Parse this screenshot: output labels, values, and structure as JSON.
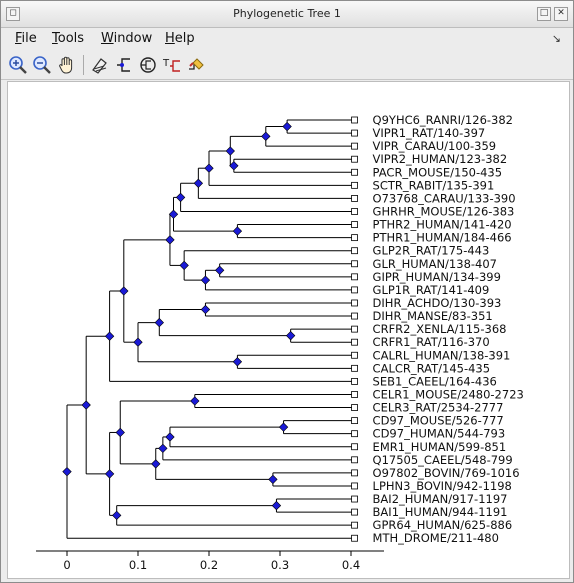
{
  "window": {
    "title": "Phylogenetic Tree 1"
  },
  "menu": {
    "items": [
      {
        "label": "File",
        "name": "menu-file"
      },
      {
        "label": "Tools",
        "name": "menu-tools"
      },
      {
        "label": "Window",
        "name": "menu-window"
      },
      {
        "label": "Help",
        "name": "menu-help"
      }
    ]
  },
  "toolbar": {
    "tools": [
      {
        "name": "zoom-in-icon"
      },
      {
        "name": "zoom-out-icon"
      },
      {
        "name": "pan-hand-icon"
      },
      {
        "name": "tool-4-icon"
      },
      {
        "name": "tool-5-icon"
      },
      {
        "name": "tool-6-icon"
      },
      {
        "name": "tool-7-icon"
      },
      {
        "name": "tool-8-icon"
      }
    ]
  },
  "tree": {
    "leaves": [
      {
        "label": "Q9YHC6_RANRI/126-382",
        "x": 0.405
      },
      {
        "label": "VIPR1_RAT/140-397",
        "x": 0.405
      },
      {
        "label": "VIPR_CARAU/100-359",
        "x": 0.405
      },
      {
        "label": "VIPR2_HUMAN/123-382",
        "x": 0.405
      },
      {
        "label": "PACR_MOUSE/150-435",
        "x": 0.405
      },
      {
        "label": "SCTR_RABIT/135-391",
        "x": 0.405
      },
      {
        "label": "O73768_CARAU/133-390",
        "x": 0.405
      },
      {
        "label": "GHRHR_MOUSE/126-383",
        "x": 0.405
      },
      {
        "label": "PTHR2_HUMAN/141-420",
        "x": 0.405
      },
      {
        "label": "PTHR1_HUMAN/184-466",
        "x": 0.405
      },
      {
        "label": "GLP2R_RAT/175-443",
        "x": 0.405
      },
      {
        "label": "GLR_HUMAN/138-407",
        "x": 0.405
      },
      {
        "label": "GIPR_HUMAN/134-399",
        "x": 0.405
      },
      {
        "label": "GLP1R_RAT/141-409",
        "x": 0.405
      },
      {
        "label": "DIHR_ACHDO/130-393",
        "x": 0.405
      },
      {
        "label": "DIHR_MANSE/83-351",
        "x": 0.405
      },
      {
        "label": "CRFR2_XENLA/115-368",
        "x": 0.405
      },
      {
        "label": "CRFR1_RAT/116-370",
        "x": 0.405
      },
      {
        "label": "CALRL_HUMAN/138-391",
        "x": 0.405
      },
      {
        "label": "CALCR_RAT/145-435",
        "x": 0.405
      },
      {
        "label": "SEB1_CAEEL/164-436",
        "x": 0.405
      },
      {
        "label": "CELR1_MOUSE/2480-2723",
        "x": 0.405
      },
      {
        "label": "CELR3_RAT/2534-2777",
        "x": 0.405
      },
      {
        "label": "CD97_MOUSE/526-777",
        "x": 0.405
      },
      {
        "label": "CD97_HUMAN/544-793",
        "x": 0.405
      },
      {
        "label": "EMR1_HUMAN/599-851",
        "x": 0.405
      },
      {
        "label": "Q17505_CAEEL/548-799",
        "x": 0.405
      },
      {
        "label": "O97802_BOVIN/769-1016",
        "x": 0.405
      },
      {
        "label": "LPHN3_BOVIN/942-1198",
        "x": 0.405
      },
      {
        "label": "BAI2_HUMAN/917-1197",
        "x": 0.405
      },
      {
        "label": "BAI1_HUMAN/944-1191",
        "x": 0.405
      },
      {
        "label": "GPR64_HUMAN/625-886",
        "x": 0.405
      },
      {
        "label": "MTH_DROME/211-480",
        "x": 0.405
      }
    ],
    "nodes": [
      {
        "id": "n0",
        "x": 0.31,
        "children": [
          0,
          1
        ]
      },
      {
        "id": "n1",
        "x": 0.28,
        "children": [
          "n0",
          2
        ]
      },
      {
        "id": "n2",
        "x": 0.235,
        "children": [
          3,
          4
        ]
      },
      {
        "id": "n3",
        "x": 0.23,
        "children": [
          "n1",
          "n2"
        ]
      },
      {
        "id": "n4",
        "x": 0.2,
        "children": [
          "n3",
          5
        ]
      },
      {
        "id": "n5",
        "x": 0.185,
        "children": [
          "n4",
          6
        ]
      },
      {
        "id": "n6",
        "x": 0.16,
        "children": [
          "n5",
          7
        ]
      },
      {
        "id": "n7",
        "x": 0.24,
        "children": [
          8,
          9
        ]
      },
      {
        "id": "n8",
        "x": 0.15,
        "children": [
          "n6",
          "n7"
        ]
      },
      {
        "id": "n9",
        "x": 0.215,
        "children": [
          11,
          12
        ]
      },
      {
        "id": "n10",
        "x": 0.195,
        "children": [
          "n9",
          13
        ]
      },
      {
        "id": "n11",
        "x": 0.165,
        "children": [
          10,
          "n10"
        ]
      },
      {
        "id": "n12",
        "x": 0.145,
        "children": [
          "n8",
          "n11"
        ]
      },
      {
        "id": "n13",
        "x": 0.195,
        "children": [
          14,
          15
        ]
      },
      {
        "id": "n14",
        "x": 0.315,
        "children": [
          16,
          17
        ]
      },
      {
        "id": "n15",
        "x": 0.13,
        "children": [
          "n13",
          "n14"
        ]
      },
      {
        "id": "n16",
        "x": 0.24,
        "children": [
          18,
          19
        ]
      },
      {
        "id": "n17",
        "x": 0.1,
        "children": [
          "n15",
          "n16"
        ]
      },
      {
        "id": "n18",
        "x": 0.08,
        "children": [
          "n12",
          "n17"
        ]
      },
      {
        "id": "n19",
        "x": 0.06,
        "children": [
          "n18",
          20
        ]
      },
      {
        "id": "n20",
        "x": 0.18,
        "children": [
          21,
          22
        ]
      },
      {
        "id": "n21",
        "x": 0.305,
        "children": [
          23,
          24
        ]
      },
      {
        "id": "n22",
        "x": 0.145,
        "children": [
          "n21",
          25
        ]
      },
      {
        "id": "n23",
        "x": 0.135,
        "children": [
          "n22",
          26
        ]
      },
      {
        "id": "n24",
        "x": 0.29,
        "children": [
          27,
          28
        ]
      },
      {
        "id": "n25",
        "x": 0.125,
        "children": [
          "n23",
          "n24"
        ]
      },
      {
        "id": "n26",
        "x": 0.075,
        "children": [
          "n20",
          "n25"
        ]
      },
      {
        "id": "n27",
        "x": 0.295,
        "children": [
          29,
          30
        ]
      },
      {
        "id": "n28",
        "x": 0.07,
        "children": [
          "n27",
          31
        ]
      },
      {
        "id": "n29",
        "x": 0.06,
        "children": [
          "n26",
          "n28"
        ]
      },
      {
        "id": "n30",
        "x": 0.027,
        "children": [
          "n19",
          "n29"
        ]
      },
      {
        "id": "n31",
        "x": 0.0,
        "children": [
          "n30",
          32
        ]
      }
    ],
    "axis": {
      "ticks": [
        0,
        0.1,
        0.2,
        0.3,
        0.4
      ],
      "tick_labels": [
        "0",
        "0.1",
        "0.2",
        "0.3",
        "0.4"
      ]
    },
    "colors": {
      "node": "#1a1ad6",
      "line": "#000000"
    }
  }
}
